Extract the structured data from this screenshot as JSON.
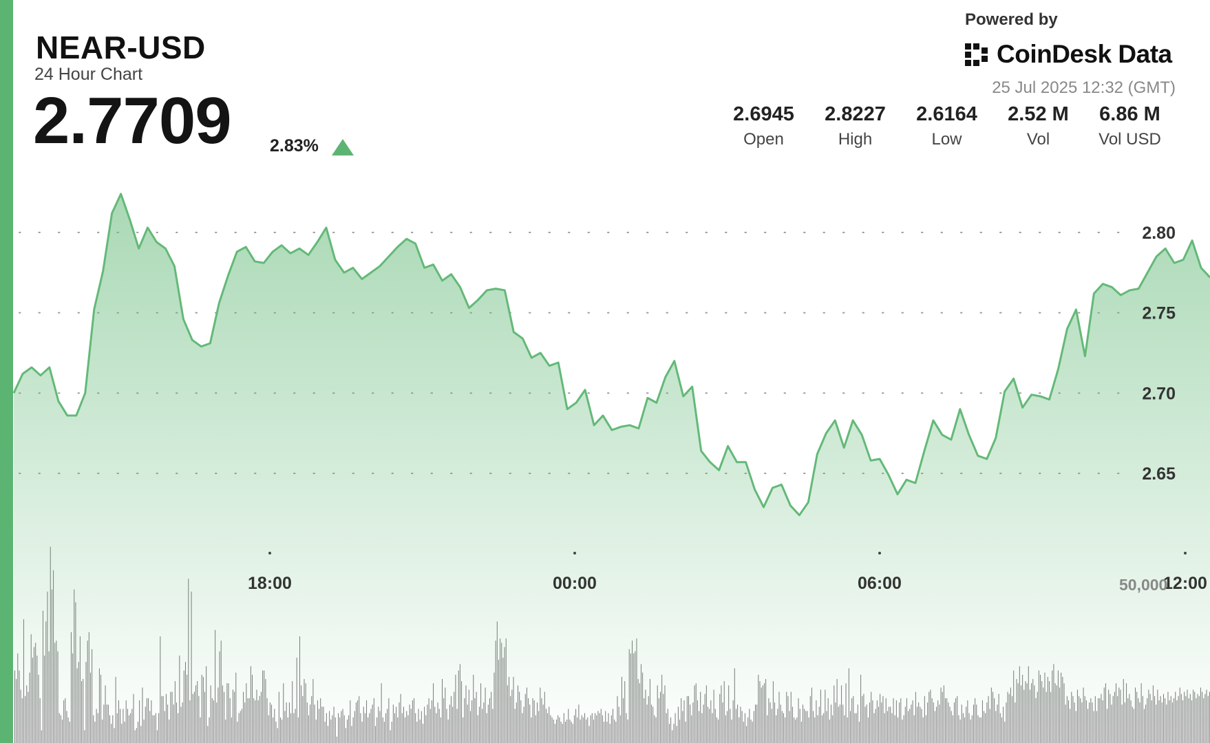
{
  "header": {
    "symbol": "NEAR-USD",
    "subtitle": "24 Hour Chart",
    "price": "2.7709",
    "change_pct": "2.83%",
    "change_direction_icon": "triangle-up-icon"
  },
  "branding": {
    "powered_by": "Powered by",
    "brand_name": "CoinDesk Data",
    "logo_icon": "coindesk-logo-icon",
    "timestamp": "25 Jul 2025 12:32 (GMT)"
  },
  "stats": [
    {
      "value": "2.6945",
      "label": "Open"
    },
    {
      "value": "2.8227",
      "label": "High"
    },
    {
      "value": "2.6164",
      "label": "Low"
    },
    {
      "value": "2.52 M",
      "label": "Vol"
    },
    {
      "value": "6.86 M",
      "label": "Vol USD"
    }
  ],
  "colors": {
    "accent": "#5cb473",
    "line": "#63b978",
    "volume_bar": "#6b6b6b"
  },
  "chart_data": {
    "type": "area",
    "x_ticks": [
      "18:00",
      "00:00",
      "06:00",
      "12:00"
    ],
    "y_ticks": [
      "2.80",
      "2.75",
      "2.70",
      "2.65"
    ],
    "y_values": [
      2.8,
      2.75,
      2.7,
      2.65
    ],
    "ylim": [
      2.6175,
      2.8385
    ],
    "grid": "dotted horizontal",
    "series": [
      {
        "values": [
          2.7,
          2.712,
          2.716,
          2.711,
          2.716,
          2.695,
          2.686,
          2.686,
          2.7,
          2.752,
          2.776,
          2.812,
          2.824,
          2.808,
          2.79,
          2.803,
          2.794,
          2.79,
          2.779,
          2.746,
          2.733,
          2.729,
          2.731,
          2.756,
          2.773,
          2.788,
          2.791,
          2.782,
          2.781,
          2.788,
          2.792,
          2.787,
          2.79,
          2.786,
          2.794,
          2.803,
          2.783,
          2.775,
          2.778,
          2.771,
          2.775,
          2.779,
          2.785,
          2.791,
          2.796,
          2.793,
          2.778,
          2.78,
          2.77,
          2.774,
          2.766,
          2.753,
          2.758,
          2.764,
          2.765,
          2.764,
          2.738,
          2.734,
          2.722,
          2.725,
          2.717,
          2.719,
          2.69,
          2.694,
          2.702,
          2.68,
          2.686,
          2.677,
          2.679,
          2.68,
          2.678,
          2.697,
          2.694,
          2.71,
          2.72,
          2.698,
          2.704,
          2.664,
          2.657,
          2.652,
          2.667,
          2.657,
          2.657,
          2.64,
          2.629,
          2.641,
          2.643,
          2.63,
          2.624,
          2.632,
          2.662,
          2.675,
          2.683,
          2.666,
          2.683,
          2.674,
          2.658,
          2.659,
          2.649,
          2.637,
          2.646,
          2.644,
          2.664,
          2.683,
          2.674,
          2.671,
          2.69,
          2.674,
          2.661,
          2.659,
          2.672,
          2.701,
          2.709,
          2.691,
          2.699,
          2.698,
          2.696,
          2.715,
          2.74,
          2.752,
          2.723,
          2.762,
          2.768,
          2.766,
          2.761,
          2.764,
          2.765,
          2.775,
          2.785,
          2.79,
          2.781,
          2.783,
          2.795,
          2.778,
          2.772
        ]
      }
    ],
    "volume": {
      "axis_label": "50,000",
      "values": [
        0.34,
        0.3,
        0.42,
        0.34,
        0.25,
        0.21,
        0.58,
        0.22,
        0.27,
        0.24,
        0.33,
        0.51,
        0.4,
        0.45,
        0.47,
        0.41,
        0.32,
        0.21,
        0.06,
        0.62,
        0.41,
        0.57,
        0.71,
        0.43,
        0.92,
        0.72,
        0.81,
        0.47,
        0.48,
        0.43,
        0.14,
        0.13,
        0.11,
        0.2,
        0.21,
        0.15,
        0.12,
        0.1,
        0.52,
        0.42,
        0.72,
        0.66,
        0.35,
        0.38,
        0.5,
        0.29,
        0.3,
        0.06,
        0.38,
        0.48,
        0.52,
        0.33,
        0.44,
        0.13,
        0.1,
        0.16,
        0.14,
        0.35,
        0.32,
        0.11,
        0.18,
        0.27,
        0.18,
        0.18,
        0.13,
        0.09,
        0.13,
        0.07,
        0.31,
        0.14,
        0.2,
        0.16,
        0.09,
        0.16,
        0.1,
        0.2,
        0.16,
        0.13,
        0.14,
        0.16,
        0.23,
        0.06,
        0.07,
        0.1,
        0.2,
        0.08,
        0.26,
        0.11,
        0.17,
        0.21,
        0.21,
        0.15,
        0.2,
        0.13,
        0.13,
        0.14,
        0.06,
        0.14,
        0.5,
        0.22,
        0.22,
        0.15,
        0.23,
        0.18,
        0.11,
        0.24,
        0.24,
        0.18,
        0.29,
        0.19,
        0.14,
        0.41,
        0.17,
        0.19,
        0.34,
        0.38,
        0.32,
        0.77,
        0.2,
        0.71,
        0.23,
        0.24,
        0.27,
        0.29,
        0.22,
        0.12,
        0.32,
        0.31,
        0.24,
        0.36,
        0.08,
        0.12,
        0.27,
        0.21,
        0.2,
        0.53,
        0.19,
        0.26,
        0.43,
        0.48,
        0.27,
        0.24,
        0.11,
        0.28,
        0.28,
        0.21,
        0.12,
        0.25,
        0.24,
        0.33,
        0.1,
        0.14,
        0.15,
        0.16,
        0.24,
        0.19,
        0.28,
        0.21,
        0.21,
        0.36,
        0.32,
        0.21,
        0.2,
        0.25,
        0.2,
        0.22,
        0.24,
        0.34,
        0.34,
        0.3,
        0.21,
        0.13,
        0.19,
        0.18,
        0.12,
        0.16,
        0.1,
        0.07,
        0.24,
        0.12,
        0.11,
        0.28,
        0.15,
        0.19,
        0.12,
        0.19,
        0.14,
        0.29,
        0.14,
        0.16,
        0.4,
        0.12,
        0.5,
        0.27,
        0.22,
        0.3,
        0.28,
        0.19,
        0.13,
        0.18,
        0.22,
        0.3,
        0.18,
        0.11,
        0.2,
        0.16,
        0.21,
        0.17,
        0.17,
        0.1,
        0.14,
        0.08,
        0.15,
        0.11,
        0.13,
        0.17,
        0.12,
        0.03,
        0.14,
        0.12,
        0.15,
        0.16,
        0.13,
        0.07,
        0.11,
        0.13,
        0.2,
        0.08,
        0.12,
        0.15,
        0.19,
        0.2,
        0.22,
        0.14,
        0.1,
        0.17,
        0.14,
        0.2,
        0.12,
        0.14,
        0.16,
        0.18,
        0.21,
        0.08,
        0.12,
        0.17,
        0.15,
        0.28,
        0.12,
        0.1,
        0.14,
        0.16,
        0.21,
        0.06,
        0.1,
        0.18,
        0.14,
        0.17,
        0.12,
        0.19,
        0.23,
        0.14,
        0.17,
        0.12,
        0.15,
        0.13,
        0.18,
        0.16,
        0.2,
        0.21,
        0.14,
        0.1,
        0.16,
        0.11,
        0.15,
        0.09,
        0.17,
        0.13,
        0.18,
        0.21,
        0.16,
        0.2,
        0.28,
        0.17,
        0.14,
        0.19,
        0.16,
        0.12,
        0.3,
        0.21,
        0.26,
        0.16,
        0.11,
        0.18,
        0.22,
        0.17,
        0.24,
        0.32,
        0.16,
        0.34,
        0.37,
        0.29,
        0.12,
        0.21,
        0.27,
        0.18,
        0.25,
        0.15,
        0.2,
        0.32,
        0.21,
        0.24,
        0.13,
        0.17,
        0.28,
        0.16,
        0.19,
        0.26,
        0.14,
        0.18,
        0.21,
        0.24,
        0.16,
        0.33,
        0.48,
        0.57,
        0.39,
        0.49,
        0.47,
        0.4,
        0.45,
        0.49,
        0.27,
        0.31,
        0.22,
        0.25,
        0.31,
        0.16,
        0.19,
        0.27,
        0.24,
        0.2,
        0.14,
        0.17,
        0.23,
        0.26,
        0.21,
        0.18,
        0.12,
        0.21,
        0.2,
        0.13,
        0.19,
        0.15,
        0.26,
        0.21,
        0.18,
        0.24,
        0.16,
        0.14,
        0.17,
        0.13,
        0.12,
        0.11,
        0.09,
        0.11,
        0.13,
        0.12,
        0.1,
        0.09,
        0.14,
        0.1,
        0.11,
        0.16,
        0.11,
        0.1,
        0.09,
        0.13,
        0.16,
        0.12,
        0.18,
        0.11,
        0.13,
        0.12,
        0.14,
        0.11,
        0.12,
        0.08,
        0.13,
        0.14,
        0.11,
        0.14,
        0.13,
        0.15,
        0.14,
        0.16,
        0.13,
        0.1,
        0.15,
        0.1,
        0.14,
        0.09,
        0.13,
        0.16,
        0.11,
        0.1,
        0.22,
        0.17,
        0.13,
        0.31,
        0.21,
        0.29,
        0.14,
        0.11,
        0.44,
        0.42,
        0.48,
        0.42,
        0.43,
        0.49,
        0.3,
        0.28,
        0.37,
        0.33,
        0.21,
        0.25,
        0.18,
        0.22,
        0.3,
        0.18,
        0.17,
        0.13,
        0.12,
        0.27,
        0.21,
        0.24,
        0.32,
        0.23,
        0.27,
        0.14,
        0.16,
        0.09,
        0.12,
        0.06,
        0.09,
        0.14,
        0.08,
        0.17,
        0.11,
        0.21,
        0.15,
        0.2,
        0.1,
        0.22,
        0.22,
        0.18,
        0.13,
        0.19,
        0.27,
        0.28,
        0.2,
        0.15,
        0.24,
        0.14,
        0.18,
        0.23,
        0.27,
        0.17,
        0.16,
        0.2,
        0.14,
        0.25,
        0.16,
        0.12,
        0.11,
        0.23,
        0.27,
        0.19,
        0.29,
        0.13,
        0.15,
        0.27,
        0.16,
        0.11,
        0.2,
        0.35,
        0.16,
        0.18,
        0.12,
        0.17,
        0.15,
        0.1,
        0.14,
        0.08,
        0.12,
        0.16,
        0.11,
        0.1,
        0.15,
        0.18,
        0.18,
        0.32,
        0.29,
        0.26,
        0.27,
        0.28,
        0.3,
        0.13,
        0.21,
        0.19,
        0.16,
        0.29,
        0.19,
        0.13,
        0.16,
        0.24,
        0.18,
        0.15,
        0.14,
        0.12,
        0.24,
        0.22,
        0.15,
        0.24,
        0.17,
        0.12,
        0.11,
        0.12,
        0.21,
        0.16,
        0.1,
        0.18,
        0.16,
        0.15,
        0.15,
        0.12,
        0.22,
        0.26,
        0.15,
        0.12,
        0.2,
        0.13,
        0.17,
        0.25,
        0.13,
        0.14,
        0.25,
        0.15,
        0.21,
        0.11,
        0.18,
        0.13,
        0.27,
        0.19,
        0.3,
        0.17,
        0.18,
        0.27,
        0.18,
        0.13,
        0.28,
        0.12,
        0.35,
        0.15,
        0.21,
        0.22,
        0.14,
        0.14,
        0.18,
        0.1,
        0.32,
        0.22,
        0.23,
        0.17,
        0.18,
        0.12,
        0.19,
        0.24,
        0.2,
        0.14,
        0.16,
        0.2,
        0.17,
        0.23,
        0.19,
        0.22,
        0.14,
        0.21,
        0.15,
        0.17,
        0.17,
        0.14,
        0.21,
        0.13,
        0.2,
        0.12,
        0.19,
        0.21,
        0.11,
        0.13,
        0.17,
        0.21,
        0.15,
        0.16,
        0.18,
        0.2,
        0.13,
        0.24,
        0.17,
        0.19,
        0.17,
        0.16,
        0.12,
        0.22,
        0.13,
        0.19,
        0.24,
        0.25,
        0.21,
        0.19,
        0.15,
        0.17,
        0.2,
        0.18,
        0.26,
        0.24,
        0.27,
        0.21,
        0.21,
        0.19,
        0.17,
        0.15,
        0.13,
        0.19,
        0.21,
        0.22,
        0.13,
        0.11,
        0.18,
        0.14,
        0.12,
        0.17,
        0.2,
        0.14,
        0.11,
        0.13,
        0.18,
        0.21,
        0.18,
        0.13,
        0.12,
        0.12,
        0.2,
        0.15,
        0.14,
        0.19,
        0.22,
        0.16,
        0.26,
        0.24,
        0.21,
        0.15,
        0.18,
        0.23,
        0.14,
        0.12,
        0.17,
        0.1,
        0.19,
        0.24,
        0.23,
        0.26,
        0.22,
        0.34,
        0.19,
        0.3,
        0.28,
        0.36,
        0.27,
        0.32,
        0.25,
        0.29,
        0.28,
        0.36,
        0.25,
        0.28,
        0.3,
        0.27,
        0.21,
        0.24,
        0.34,
        0.32,
        0.29,
        0.26,
        0.33,
        0.24,
        0.31,
        0.29,
        0.24,
        0.34,
        0.37,
        0.28,
        0.27,
        0.34,
        0.26,
        0.33,
        0.31,
        0.28,
        0.18,
        0.22,
        0.2,
        0.16,
        0.24,
        0.22,
        0.19,
        0.15,
        0.25,
        0.22,
        0.21,
        0.19,
        0.26,
        0.22,
        0.2,
        0.16,
        0.19,
        0.21,
        0.19,
        0.15,
        0.22,
        0.15,
        0.21,
        0.21,
        0.23,
        0.2,
        0.26,
        0.28,
        0.16,
        0.25,
        0.23,
        0.18,
        0.22,
        0.24,
        0.28,
        0.22,
        0.26,
        0.25,
        0.18,
        0.3,
        0.19,
        0.28,
        0.21,
        0.23,
        0.2,
        0.17,
        0.16,
        0.26,
        0.24,
        0.21,
        0.19,
        0.28,
        0.22,
        0.16,
        0.18,
        0.21,
        0.25,
        0.23,
        0.2,
        0.27,
        0.22,
        0.18,
        0.25,
        0.2,
        0.22,
        0.19,
        0.23,
        0.21,
        0.18,
        0.24,
        0.2,
        0.22,
        0.19,
        0.21,
        0.24,
        0.2,
        0.22,
        0.26,
        0.23,
        0.2,
        0.24,
        0.22,
        0.25,
        0.21,
        0.23,
        0.2,
        0.25,
        0.24,
        0.21,
        0.23,
        0.22,
        0.26,
        0.24,
        0.21,
        0.23,
        0.25,
        0.22,
        0.24
      ]
    }
  }
}
